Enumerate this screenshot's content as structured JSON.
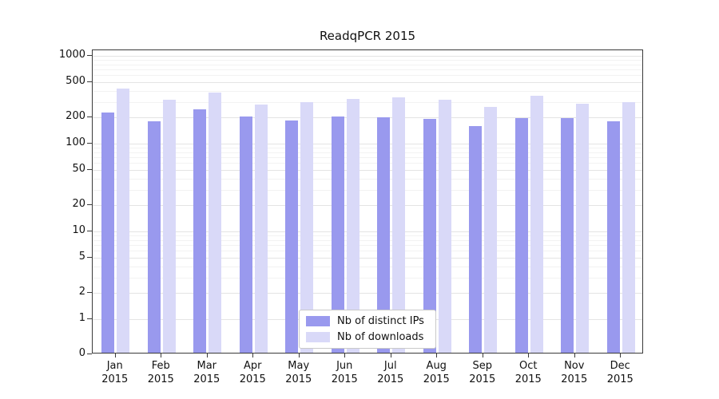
{
  "title": "ReadqPCR 2015",
  "colors": {
    "ips_bar": "#9999ee",
    "downloads_bar": "#d9d9f8",
    "grid_major": "#e4e4e4",
    "grid_minor": "#f2f2f2",
    "axis": "#3a3a3a",
    "background": "#ffffff"
  },
  "chart_data": {
    "type": "bar",
    "title": "ReadqPCR 2015",
    "xlabel": "",
    "ylabel": "",
    "yscale": "log-with-zero-baseline",
    "ylim": [
      0,
      1000
    ],
    "yticks": [
      0,
      1,
      2,
      5,
      10,
      20,
      50,
      100,
      200,
      500,
      1000
    ],
    "grid": true,
    "legend_position": "lower center",
    "categories": [
      "Jan 2015",
      "Feb 2015",
      "Mar 2015",
      "Apr 2015",
      "May 2015",
      "Jun 2015",
      "Jul 2015",
      "Aug 2015",
      "Sep 2015",
      "Oct 2015",
      "Nov 2015",
      "Dec 2015"
    ],
    "series": [
      {
        "name": "Nb of distinct IPs",
        "color": "#9999ee",
        "values": [
          225,
          180,
          245,
          205,
          185,
          205,
          200,
          190,
          160,
          195,
          195,
          180
        ]
      },
      {
        "name": "Nb of downloads",
        "color": "#d9d9f8",
        "values": [
          420,
          315,
          380,
          280,
          295,
          325,
          335,
          315,
          260,
          350,
          285,
          300
        ]
      }
    ]
  }
}
